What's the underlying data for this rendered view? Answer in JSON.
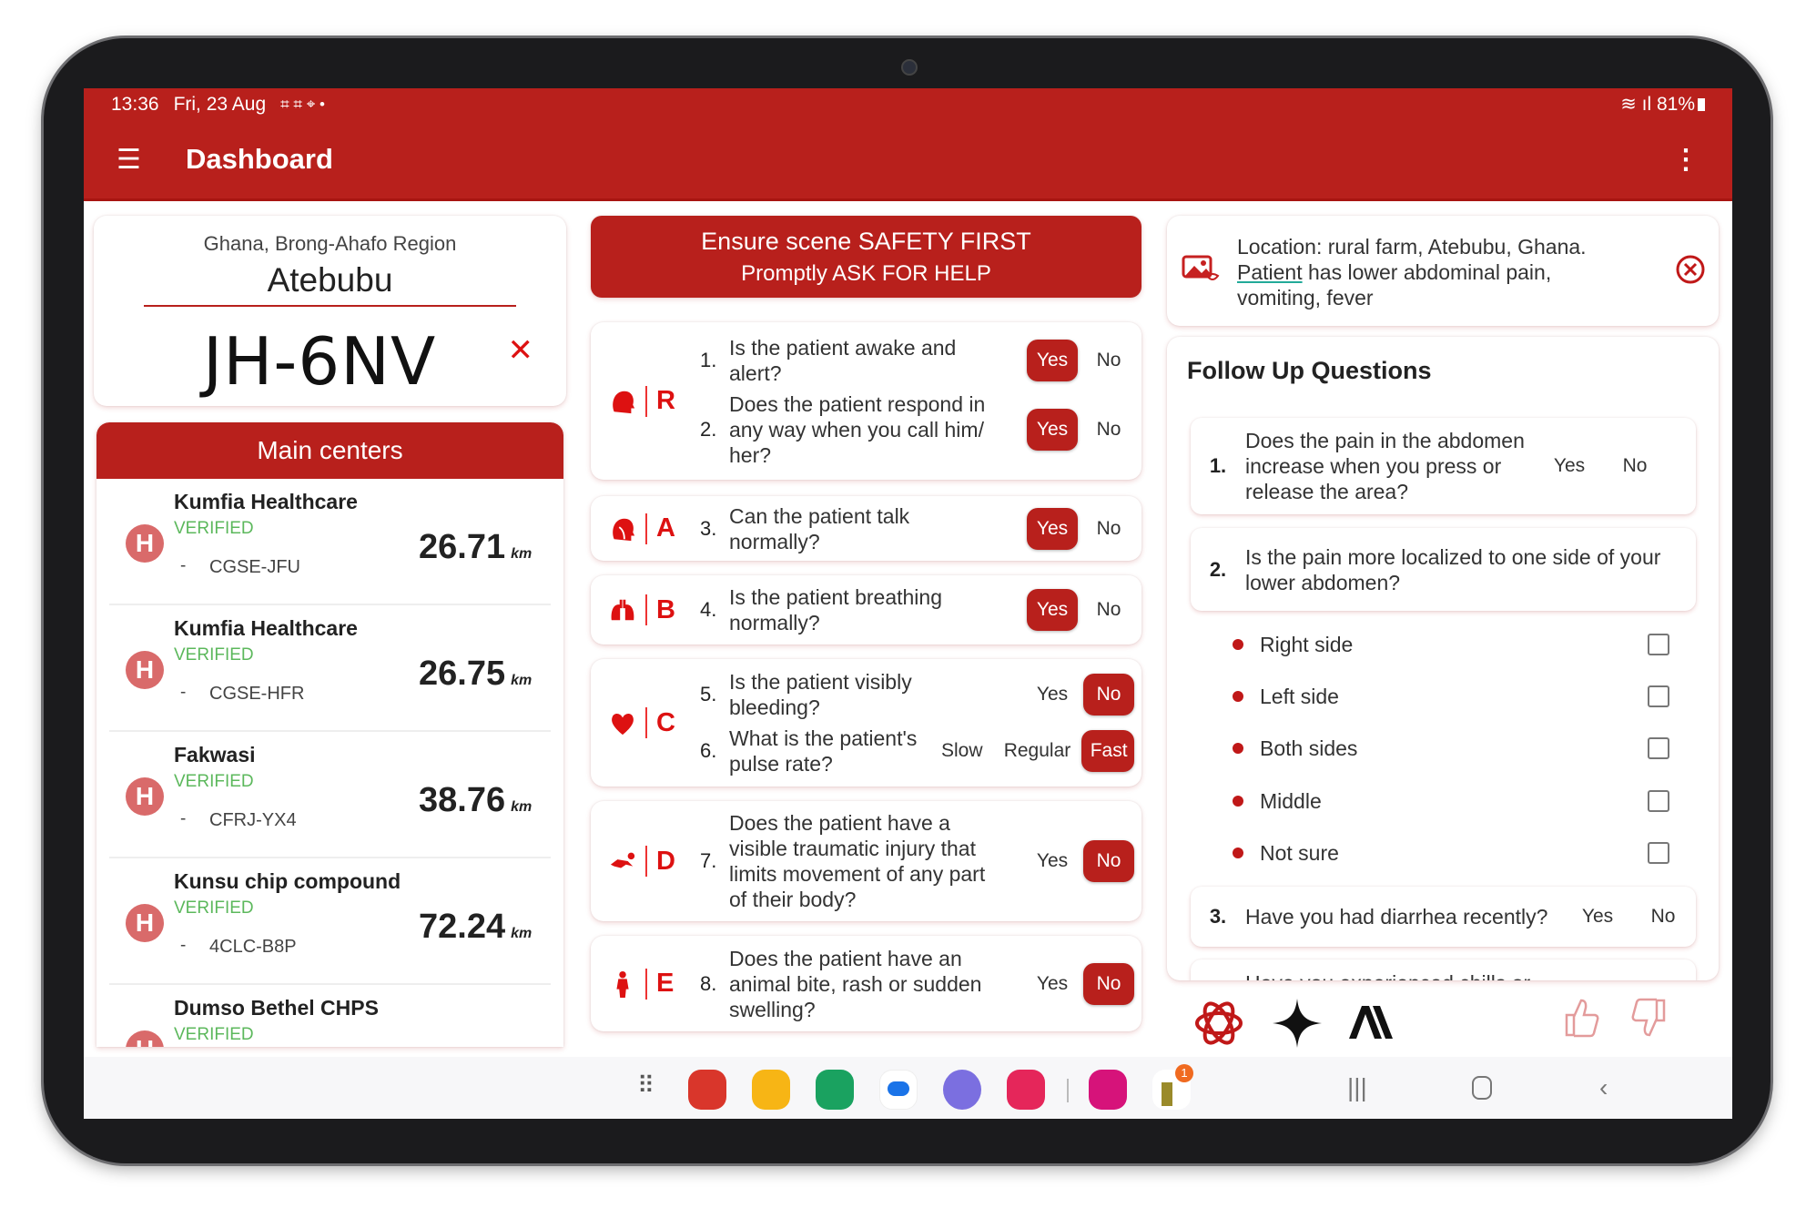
{
  "status_bar": {
    "time": "13:36",
    "date": "Fri, 23 Aug",
    "battery": "81%"
  },
  "app_bar": {
    "title": "Dashboard",
    "menu_icon": "hamburger-icon",
    "more_icon": "more-vert-icon"
  },
  "location": {
    "region": "Ghana, Brong-Ahafo Region",
    "city": "Atebubu",
    "code": "JH-6NV"
  },
  "centers": {
    "header": "Main centers",
    "items": [
      {
        "name": "Kumfia Healthcare",
        "status": "VERIFIED",
        "dash": "-",
        "id": "CGSE-JFU",
        "distance": "26.71",
        "unit": "km"
      },
      {
        "name": "Kumfia Healthcare",
        "status": "VERIFIED",
        "dash": "-",
        "id": "CGSE-HFR",
        "distance": "26.75",
        "unit": "km"
      },
      {
        "name": "Fakwasi",
        "status": "VERIFIED",
        "dash": "-",
        "id": "CFRJ-YX4",
        "distance": "38.76",
        "unit": "km"
      },
      {
        "name": "Kunsu chip compound",
        "status": "VERIFIED",
        "dash": "-",
        "id": "4CLC-B8P",
        "distance": "72.24",
        "unit": "km"
      },
      {
        "name": "Dumso Bethel CHPS",
        "status": "VERIFIED",
        "dash": "",
        "id": "",
        "distance": "",
        "unit": ""
      }
    ]
  },
  "safety": {
    "line1": "Ensure scene SAFETY FIRST",
    "line2": "Promptly ASK FOR HELP"
  },
  "abcde": [
    {
      "letter": "R",
      "icon": "head-icon",
      "questions": [
        {
          "num": "1.",
          "text": "Is the patient awake and alert?",
          "options": [
            "Yes",
            "No"
          ],
          "selected": "Yes"
        },
        {
          "num": "2.",
          "text": "Does the patient respond in any way when you call him/ her?",
          "options": [
            "Yes",
            "No"
          ],
          "selected": "Yes"
        }
      ]
    },
    {
      "letter": "A",
      "icon": "airway-head-icon",
      "questions": [
        {
          "num": "3.",
          "text": "Can the patient talk normally?",
          "options": [
            "Yes",
            "No"
          ],
          "selected": "Yes"
        }
      ]
    },
    {
      "letter": "B",
      "icon": "lungs-icon",
      "questions": [
        {
          "num": "4.",
          "text": "Is the patient breathing normally?",
          "options": [
            "Yes",
            "No"
          ],
          "selected": "Yes"
        }
      ]
    },
    {
      "letter": "C",
      "icon": "heart-icon",
      "questions": [
        {
          "num": "5.",
          "text": "Is the patient visibly bleeding?",
          "options": [
            "Yes",
            "No"
          ],
          "selected": "No"
        },
        {
          "num": "6.",
          "text": "What is the patient's pulse rate?",
          "options": [
            "Slow",
            "Regular",
            "Fast"
          ],
          "selected": "Fast"
        }
      ]
    },
    {
      "letter": "D",
      "icon": "injured-person-icon",
      "questions": [
        {
          "num": "7.",
          "text": "Does the patient have a visible traumatic injury that limits movement of any part of their body?",
          "options": [
            "Yes",
            "No"
          ],
          "selected": "No"
        }
      ]
    },
    {
      "letter": "E",
      "icon": "body-icon",
      "questions": [
        {
          "num": "8.",
          "text": "Does the patient have an animal bite, rash or sudden swelling?",
          "options": [
            "Yes",
            "No"
          ],
          "selected": "No"
        }
      ]
    }
  ],
  "info": {
    "line_prefix": "Location: rural farm, Atebubu, Ghana.",
    "underlined": "Patient",
    "rest": " has lower abdominal pain, vomiting, fever"
  },
  "follow_up": {
    "title": "Follow Up Questions",
    "q1": {
      "num": "1.",
      "text": "Does the pain in the abdomen increase when you press or release the area?",
      "yes": "Yes",
      "no": "No"
    },
    "q2": {
      "num": "2.",
      "text": "Is the pain more localized to one side of your lower abdomen?"
    },
    "q2_options": [
      "Right side",
      "Left side",
      "Both sides",
      "Middle",
      "Not sure"
    ],
    "q3": {
      "num": "3.",
      "text": "Have you had diarrhea recently?",
      "yes": "Yes",
      "no": "No"
    },
    "q4_partial": "Have you experienced chills or"
  },
  "ai_icons": [
    "openai-icon",
    "gemini-icon",
    "anthropic-icon"
  ],
  "dock": {
    "apps": [
      "app-drawer-icon",
      "notes-app-icon",
      "files-app-icon",
      "phone-app-icon",
      "messages-app-icon",
      "internet-app-icon",
      "screen-recorder-icon",
      "flower-app-icon",
      "game-app-icon"
    ],
    "badge": "1"
  },
  "colors": {
    "primary": "#b8201c",
    "verified": "#5cb85c",
    "hospital": "#d96a6a"
  }
}
